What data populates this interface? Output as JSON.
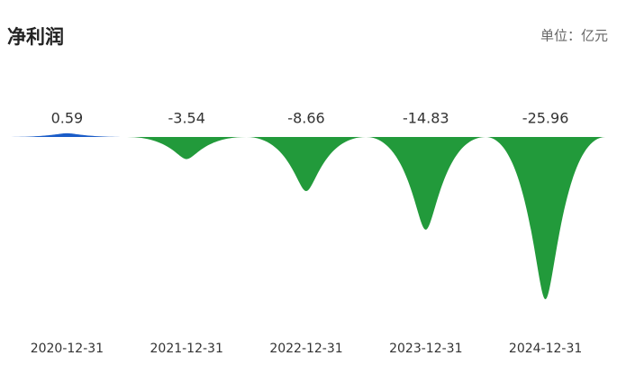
{
  "chart_data": {
    "type": "spike-bar",
    "title": "净利润",
    "unit": "单位：亿元",
    "categories": [
      "2020-12-31",
      "2021-12-31",
      "2022-12-31",
      "2023-12-31",
      "2024-12-31"
    ],
    "values": [
      0.59,
      -3.54,
      -8.66,
      -14.83,
      -25.96
    ],
    "positive_color": "#1a5cc8",
    "negative_color": "#229a3b"
  }
}
